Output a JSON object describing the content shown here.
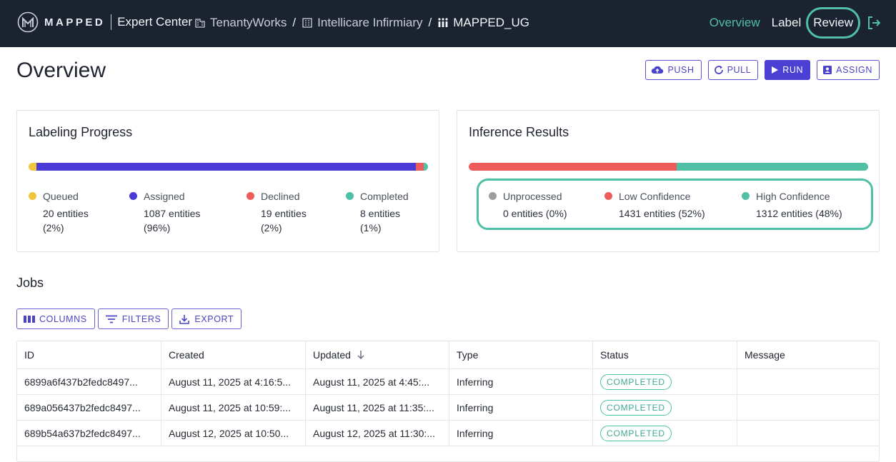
{
  "brand": {
    "logo_text": "MAPPED",
    "app_name": "Expert Center"
  },
  "breadcrumbs": [
    {
      "label": "TenantyWorks",
      "icon": "building-icon"
    },
    {
      "label": "Intellicare Infirmiary",
      "icon": "office-building-icon"
    },
    {
      "label": "MAPPED_UG",
      "icon": "grid-dots-icon"
    }
  ],
  "nav": {
    "overview": "Overview",
    "label": "Label",
    "review": "Review",
    "logout_icon": "logout-icon"
  },
  "colors": {
    "accent": "#4fc0a5",
    "primary": "#4b3fd4",
    "queued": "#f0c53c",
    "assigned": "#4a3ad6",
    "declined": "#ee5b5b",
    "completed": "#4fc0a5",
    "unprocessed": "#9e9e9e"
  },
  "header": {
    "title": "Overview"
  },
  "actions": {
    "push": "PUSH",
    "pull": "PULL",
    "run": "RUN",
    "assign": "ASSIGN"
  },
  "labeling": {
    "title": "Labeling Progress",
    "items": [
      {
        "label": "Queued",
        "entities": "20 entities",
        "pct": "(2%)",
        "value": 2
      },
      {
        "label": "Assigned",
        "entities": "1087 entities",
        "pct": "(96%)",
        "value": 96
      },
      {
        "label": "Declined",
        "entities": "19 entities",
        "pct": "(2%)",
        "value": 2
      },
      {
        "label": "Completed",
        "entities": "8 entities",
        "pct": "(1%)",
        "value": 1
      }
    ]
  },
  "inference": {
    "title": "Inference Results",
    "items": [
      {
        "label": "Unprocessed",
        "value_text": "0 entities (0%)",
        "value": 0
      },
      {
        "label": "Low Confidence",
        "value_text": "1431 entities (52%)",
        "value": 52
      },
      {
        "label": "High Confidence",
        "value_text": "1312 entities (48%)",
        "value": 48
      }
    ]
  },
  "jobs": {
    "title": "Jobs",
    "toolbar": {
      "columns": "COLUMNS",
      "filters": "FILTERS",
      "export": "EXPORT"
    },
    "columns": [
      "ID",
      "Created",
      "Updated",
      "Type",
      "Status",
      "Message"
    ],
    "rows": [
      {
        "id": "6899a6f437b2fedc8497...",
        "created": "August 11, 2025 at 4:16:5...",
        "updated": "August 11, 2025 at 4:45:...",
        "type": "Inferring",
        "status": "COMPLETED",
        "message": ""
      },
      {
        "id": "689a056437b2fedc8497...",
        "created": "August 11, 2025 at 10:59:...",
        "updated": "August 11, 2025 at 11:35:...",
        "type": "Inferring",
        "status": "COMPLETED",
        "message": ""
      },
      {
        "id": "689b54a637b2fedc8497...",
        "created": "August 12, 2025 at 10:50...",
        "updated": "August 12, 2025 at 11:30:...",
        "type": "Inferring",
        "status": "COMPLETED",
        "message": ""
      }
    ]
  }
}
